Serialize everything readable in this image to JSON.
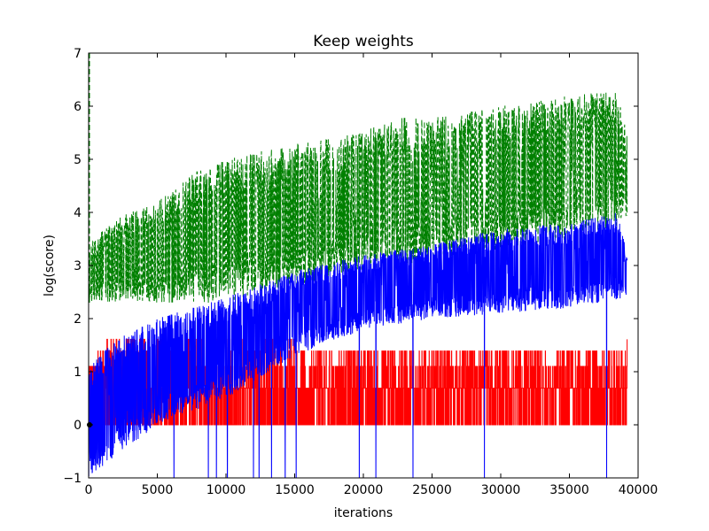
{
  "chart_data": {
    "type": "line",
    "title": "Keep weights",
    "xlabel": "iterations",
    "ylabel": "log(score)",
    "xlim": [
      0,
      40000
    ],
    "ylim": [
      -1,
      7
    ],
    "xticks": [
      0,
      5000,
      10000,
      15000,
      20000,
      25000,
      30000,
      35000,
      40000
    ],
    "xtick_labels": [
      "0",
      "5000",
      "10000",
      "15000",
      "20000",
      "25000",
      "30000",
      "35000",
      "40000"
    ],
    "yticks": [
      -1,
      0,
      1,
      2,
      3,
      4,
      5,
      6,
      7
    ],
    "ytick_labels": [
      "−1",
      "0",
      "1",
      "2",
      "3",
      "4",
      "5",
      "6",
      "7"
    ],
    "grid": false,
    "legend": null,
    "series": [
      {
        "color": "#008000",
        "style": "dashed",
        "x_end": 39200,
        "lower_band": [
          [
            0,
            2.3
          ],
          [
            5000,
            2.3
          ],
          [
            10000,
            2.3
          ],
          [
            15000,
            2.6
          ],
          [
            20000,
            2.9
          ],
          [
            25000,
            3.1
          ],
          [
            30000,
            3.3
          ],
          [
            35000,
            3.5
          ],
          [
            39200,
            3.8
          ]
        ],
        "upper_band": [
          [
            0,
            3.4
          ],
          [
            2000,
            3.9
          ],
          [
            5000,
            4.2
          ],
          [
            8000,
            4.8
          ],
          [
            10000,
            5.0
          ],
          [
            15000,
            5.3
          ],
          [
            20000,
            5.5
          ],
          [
            22000,
            5.8
          ],
          [
            25000,
            5.8
          ],
          [
            30000,
            6.0
          ],
          [
            35000,
            6.2
          ],
          [
            38500,
            6.3
          ],
          [
            39200,
            5.6
          ]
        ]
      },
      {
        "color": "#0000ff",
        "style": "solid",
        "x_end": 39200,
        "lower_band": [
          [
            0,
            -1.0
          ],
          [
            5000,
            0.0
          ],
          [
            10000,
            0.5
          ],
          [
            15000,
            1.3
          ],
          [
            20000,
            1.8
          ],
          [
            25000,
            2.0
          ],
          [
            30000,
            2.1
          ],
          [
            35000,
            2.2
          ],
          [
            39200,
            2.4
          ]
        ],
        "upper_band": [
          [
            0,
            1.1
          ],
          [
            2000,
            1.6
          ],
          [
            5000,
            2.0
          ],
          [
            10000,
            2.4
          ],
          [
            15000,
            2.9
          ],
          [
            20000,
            3.2
          ],
          [
            25000,
            3.4
          ],
          [
            30000,
            3.7
          ],
          [
            35000,
            3.8
          ],
          [
            38500,
            4.0
          ],
          [
            39200,
            3.2
          ]
        ],
        "deep_dips": [
          6200,
          8700,
          9300,
          10100,
          12000,
          12400,
          13300,
          14300,
          15100,
          19700,
          20900,
          23600,
          28800,
          37700
        ]
      },
      {
        "color": "#ff0000",
        "style": "solid",
        "x_end": 39200,
        "levels": [
          0.0,
          0.69,
          1.1,
          1.39,
          1.61
        ],
        "early_top": [
          [
            0,
            1.1
          ],
          [
            1200,
            1.6
          ],
          [
            5000,
            1.8
          ],
          [
            9000,
            1.8
          ],
          [
            15000,
            1.6
          ],
          [
            20000,
            1.4
          ],
          [
            39200,
            1.6
          ]
        ]
      }
    ]
  }
}
